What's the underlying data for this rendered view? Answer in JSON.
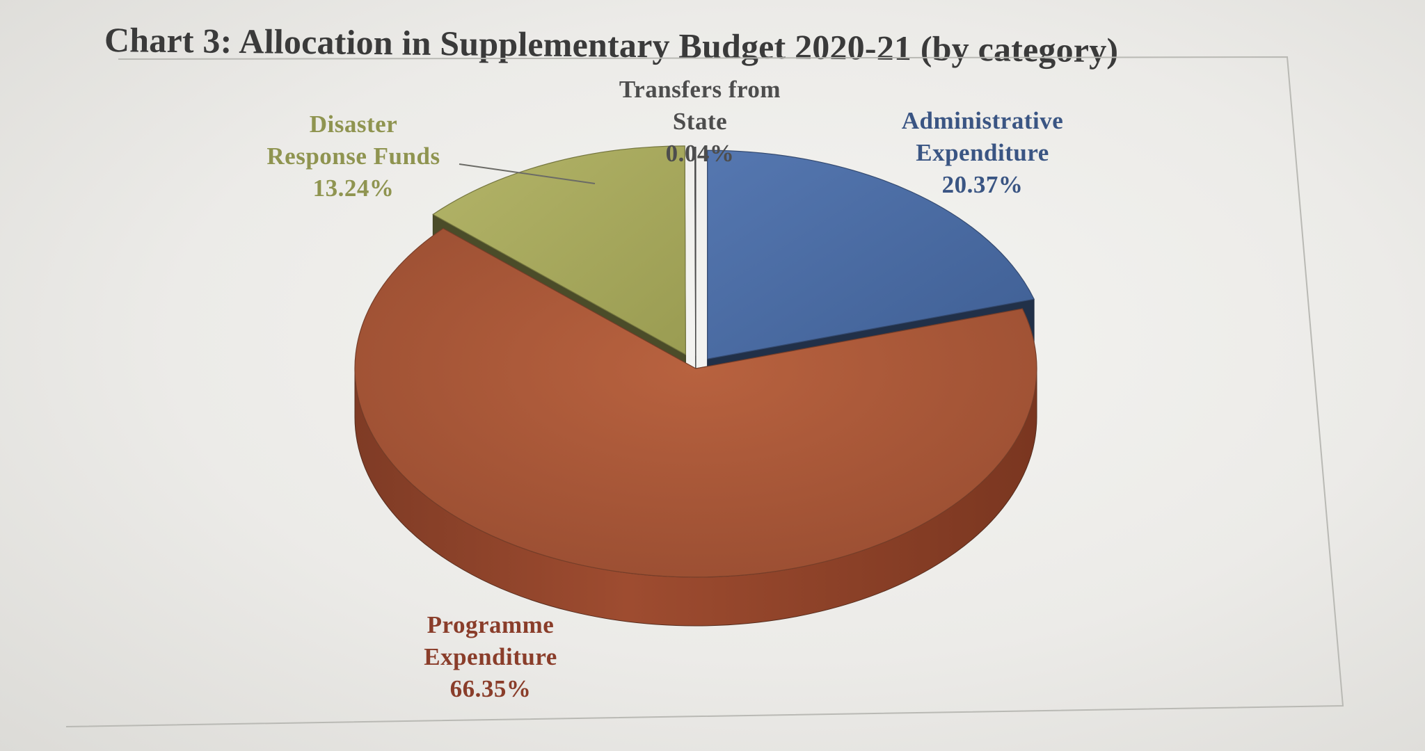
{
  "chart_data": {
    "type": "pie",
    "style": "3d-exploded",
    "title": "Chart 3: Allocation in Supplementary Budget 2020-21 (by category)",
    "unit": "%",
    "slices": [
      {
        "name": "Administrative Expenditure",
        "label_lines": [
          "Administrative",
          "Expenditure"
        ],
        "value": 20.37,
        "value_label": "20.37%",
        "color": "#4a6aa0",
        "label_color": "#3a5583"
      },
      {
        "name": "Programme Expenditure",
        "label_lines": [
          "Programme",
          "Expenditure"
        ],
        "value": 66.35,
        "value_label": "66.35%",
        "color": "#a9583a",
        "label_color": "#8a3d2a"
      },
      {
        "name": "Disaster Response Funds",
        "label_lines": [
          "Disaster",
          "Response Funds"
        ],
        "value": 13.24,
        "value_label": "13.24%",
        "color": "#a7a85a",
        "label_color": "#8f9450"
      },
      {
        "name": "Transfers from State",
        "label_lines": [
          "Transfers from",
          "State"
        ],
        "value": 0.04,
        "value_label": "0.04%",
        "color": "#6a6a6a",
        "label_color": "#4d4d4d"
      }
    ]
  }
}
